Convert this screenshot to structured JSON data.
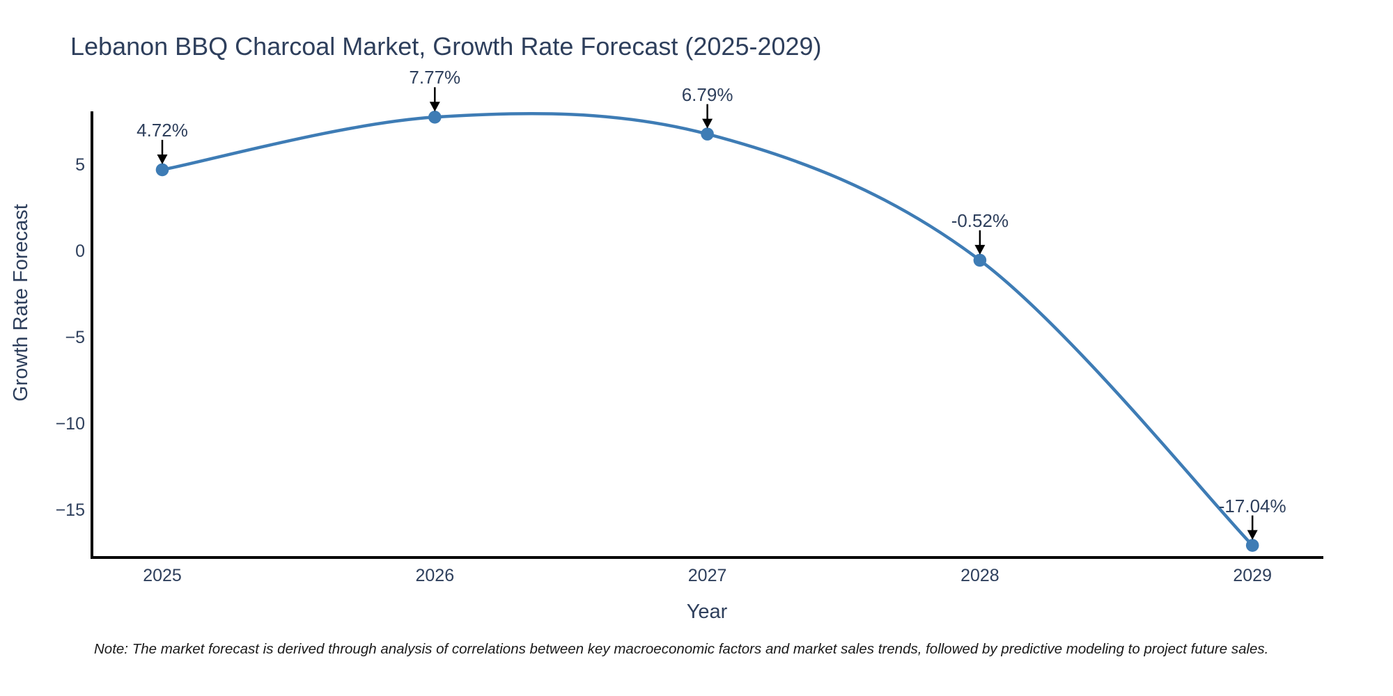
{
  "chart_data": {
    "type": "line",
    "line_shape": "spline",
    "title": "Lebanon BBQ Charcoal Market, Growth Rate Forecast (2025-2029)",
    "xlabel": "Year",
    "ylabel": "Growth Rate Forecast",
    "categories": [
      "2025",
      "2026",
      "2027",
      "2028",
      "2029"
    ],
    "series": [
      {
        "name": "Growth Rate Forecast",
        "values": [
          4.72,
          7.77,
          6.79,
          -0.52,
          -17.04
        ]
      }
    ],
    "point_labels": [
      "4.72%",
      "7.77%",
      "6.79%",
      "-0.52%",
      "-17.04%"
    ],
    "ytick_labels": [
      "5",
      "0",
      "−5",
      "−10",
      "−15"
    ],
    "ytick_values": [
      5,
      0,
      -5,
      -10,
      -15
    ],
    "ylim": [
      -17.7,
      8.0
    ],
    "grid": false,
    "legend_position": "none",
    "background": "#ffffff",
    "note": "Note: The market forecast is derived through analysis of correlations between key macroeconomic factors and market sales trends, followed by predictive modeling to project future sales.",
    "colors": {
      "line": "#3e7cb5",
      "marker": "#3e7cb5",
      "axis": "#000000",
      "text": "#2e3f5c",
      "annotation_arrow": "#000000",
      "note_text": "#1a1a1a"
    }
  }
}
